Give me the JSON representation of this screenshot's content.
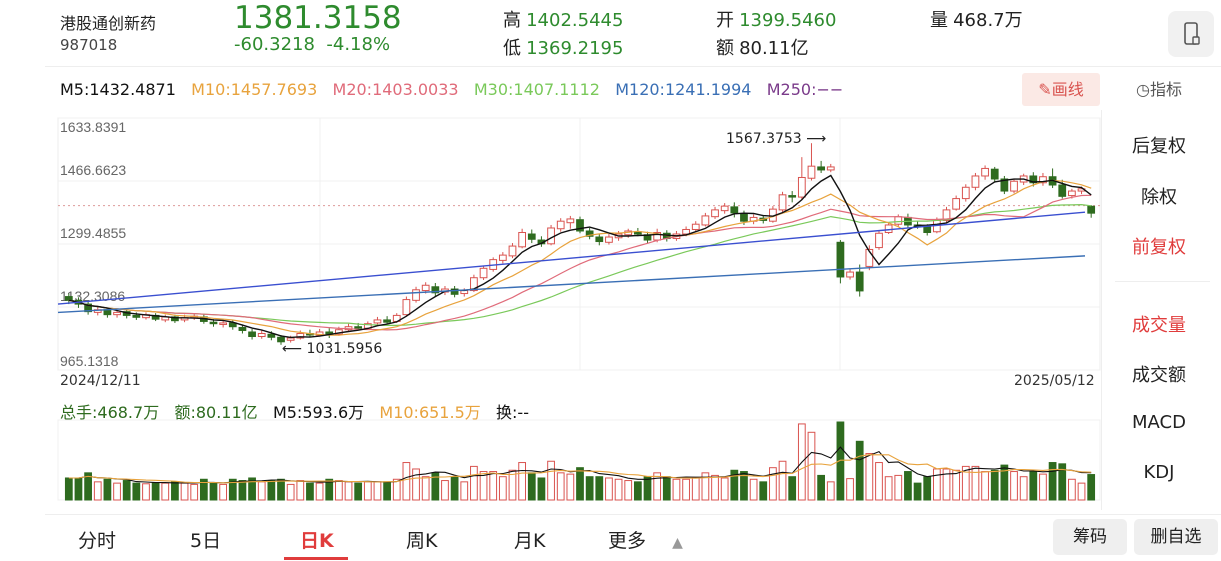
{
  "quote": {
    "name": "港股通创新药",
    "code": "987018",
    "price": "1381.3158",
    "change": "-60.3218",
    "change_pct": "-4.18%",
    "high_label": "高",
    "high_value": "1402.5445",
    "low_label": "低",
    "low_value": "1369.2195",
    "open_label": "开",
    "open_value": "1399.5460",
    "amount_label": "额",
    "amount_value": "80.11亿",
    "volume_label": "量",
    "volume_value": "468.7万"
  },
  "ma": {
    "m5": "M5:1432.4871",
    "m10": "M10:1457.7693",
    "m20": "M20:1403.0033",
    "m30": "M30:1407.1112",
    "m120": "M120:1241.1994",
    "m250": "M250:−−"
  },
  "draw_button": "画线",
  "indicator_label": "指标",
  "chart": {
    "y_ticks": [
      "1633.8391",
      "1466.6623",
      "1299.4855",
      "1132.3086",
      "965.1318"
    ],
    "date_start": "2024/12/11",
    "date_end": "2025/05/12",
    "high_annotation": "1567.3753",
    "low_annotation": "1031.5956"
  },
  "volume_row": {
    "total": "总手:468.7万",
    "amount": "额:80.11亿",
    "m5": "M5:593.6万",
    "m10": "M10:651.5万",
    "turn": "换:--"
  },
  "right_menu": [
    "后复权",
    "除权",
    "前复权",
    "成交量",
    "成交额",
    "MACD",
    "KDJ"
  ],
  "tabs": [
    "分时",
    "5日",
    "日K",
    "周K",
    "月K",
    "更多"
  ],
  "bottom_buttons": [
    "筹码",
    "删自选"
  ],
  "colors": {
    "up": "#d9534f",
    "down": "#2e6b1f",
    "green_text": "#2e8b2e",
    "accent": "#e03c3c",
    "m5": "#111111",
    "m10": "#e8a33d",
    "m20": "#e06b7a",
    "m30": "#7ac95a",
    "m120": "#3a6fb5",
    "m250": "#7a3a8a"
  },
  "chart_data": {
    "type": "candlestick",
    "x_start": "2024/12/11",
    "x_end": "2025/05/12",
    "ylim": [
      965.1318,
      1633.8391
    ],
    "candles": [
      [
        1160,
        1150,
        1168,
        1140
      ],
      [
        1150,
        1140,
        1158,
        1130
      ],
      [
        1140,
        1120,
        1148,
        1112
      ],
      [
        1118,
        1125,
        1132,
        1110
      ],
      [
        1125,
        1112,
        1130,
        1104
      ],
      [
        1112,
        1118,
        1124,
        1104
      ],
      [
        1120,
        1110,
        1126,
        1102
      ],
      [
        1110,
        1105,
        1118,
        1098
      ],
      [
        1104,
        1112,
        1118,
        1099
      ],
      [
        1110,
        1100,
        1116,
        1095
      ],
      [
        1098,
        1106,
        1112,
        1092
      ],
      [
        1106,
        1096,
        1112,
        1090
      ],
      [
        1098,
        1104,
        1112,
        1092
      ],
      [
        1104,
        1108,
        1116,
        1098
      ],
      [
        1106,
        1094,
        1114,
        1088
      ],
      [
        1092,
        1088,
        1100,
        1080
      ],
      [
        1086,
        1090,
        1096,
        1078
      ],
      [
        1090,
        1080,
        1098,
        1072
      ],
      [
        1078,
        1070,
        1086,
        1062
      ],
      [
        1066,
        1054,
        1074,
        1046
      ],
      [
        1054,
        1062,
        1070,
        1048
      ],
      [
        1060,
        1052,
        1068,
        1044
      ],
      [
        1052,
        1040,
        1058,
        1032
      ],
      [
        1044,
        1050,
        1056,
        1038
      ],
      [
        1050,
        1062,
        1070,
        1046
      ],
      [
        1062,
        1058,
        1072,
        1052
      ],
      [
        1058,
        1066,
        1074,
        1054
      ],
      [
        1066,
        1060,
        1076,
        1050
      ],
      [
        1060,
        1072,
        1080,
        1056
      ],
      [
        1072,
        1080,
        1088,
        1066
      ],
      [
        1080,
        1076,
        1090,
        1070
      ],
      [
        1076,
        1088,
        1094,
        1072
      ],
      [
        1090,
        1098,
        1106,
        1084
      ],
      [
        1098,
        1092,
        1108,
        1086
      ],
      [
        1094,
        1110,
        1116,
        1090
      ],
      [
        1112,
        1152,
        1160,
        1108
      ],
      [
        1150,
        1178,
        1186,
        1144
      ],
      [
        1176,
        1190,
        1198,
        1168
      ],
      [
        1186,
        1170,
        1196,
        1160
      ],
      [
        1172,
        1180,
        1188,
        1164
      ],
      [
        1180,
        1166,
        1188,
        1158
      ],
      [
        1168,
        1176,
        1182,
        1160
      ],
      [
        1176,
        1210,
        1218,
        1172
      ],
      [
        1210,
        1235,
        1242,
        1204
      ],
      [
        1232,
        1258,
        1264,
        1226
      ],
      [
        1256,
        1270,
        1278,
        1248
      ],
      [
        1268,
        1294,
        1302,
        1262
      ],
      [
        1292,
        1330,
        1340,
        1288
      ],
      [
        1326,
        1312,
        1338,
        1302
      ],
      [
        1310,
        1300,
        1320,
        1292
      ],
      [
        1300,
        1342,
        1350,
        1296
      ],
      [
        1340,
        1360,
        1368,
        1332
      ],
      [
        1356,
        1366,
        1374,
        1340
      ],
      [
        1364,
        1334,
        1372,
        1328
      ],
      [
        1334,
        1320,
        1342,
        1312
      ],
      [
        1318,
        1306,
        1326,
        1296
      ],
      [
        1304,
        1318,
        1326,
        1298
      ],
      [
        1316,
        1326,
        1334,
        1308
      ],
      [
        1324,
        1334,
        1340,
        1316
      ],
      [
        1332,
        1326,
        1342,
        1320
      ],
      [
        1324,
        1310,
        1332,
        1302
      ],
      [
        1310,
        1330,
        1340,
        1304
      ],
      [
        1328,
        1314,
        1336,
        1306
      ],
      [
        1314,
        1326,
        1334,
        1308
      ],
      [
        1326,
        1338,
        1346,
        1320
      ],
      [
        1338,
        1352,
        1360,
        1332
      ],
      [
        1350,
        1374,
        1382,
        1346
      ],
      [
        1372,
        1390,
        1398,
        1366
      ],
      [
        1388,
        1400,
        1408,
        1380
      ],
      [
        1398,
        1382,
        1410,
        1370
      ],
      [
        1380,
        1360,
        1388,
        1350
      ],
      [
        1360,
        1370,
        1378,
        1352
      ],
      [
        1368,
        1362,
        1376,
        1354
      ],
      [
        1360,
        1392,
        1400,
        1356
      ],
      [
        1390,
        1430,
        1438,
        1384
      ],
      [
        1428,
        1424,
        1440,
        1410
      ],
      [
        1424,
        1476,
        1530,
        1418
      ],
      [
        1474,
        1506,
        1567,
        1468
      ],
      [
        1504,
        1496,
        1520,
        1488
      ],
      [
        1496,
        1504,
        1512,
        1490
      ],
      [
        1304,
        1212,
        1310,
        1195
      ],
      [
        1212,
        1225,
        1232,
        1205
      ],
      [
        1225,
        1175,
        1245,
        1160
      ],
      [
        1240,
        1285,
        1296,
        1230
      ],
      [
        1290,
        1328,
        1336,
        1284
      ],
      [
        1330,
        1350,
        1356,
        1326
      ],
      [
        1352,
        1372,
        1378,
        1346
      ],
      [
        1370,
        1350,
        1380,
        1342
      ],
      [
        1350,
        1345,
        1360,
        1340
      ],
      [
        1345,
        1330,
        1352,
        1322
      ],
      [
        1332,
        1362,
        1370,
        1328
      ],
      [
        1362,
        1390,
        1398,
        1356
      ],
      [
        1392,
        1420,
        1428,
        1388
      ],
      [
        1420,
        1450,
        1458,
        1412
      ],
      [
        1450,
        1480,
        1488,
        1442
      ],
      [
        1480,
        1500,
        1508,
        1470
      ],
      [
        1498,
        1472,
        1504,
        1464
      ],
      [
        1472,
        1440,
        1480,
        1432
      ],
      [
        1440,
        1466,
        1472,
        1434
      ],
      [
        1464,
        1480,
        1486,
        1456
      ],
      [
        1480,
        1462,
        1490,
        1452
      ],
      [
        1462,
        1478,
        1488,
        1454
      ],
      [
        1478,
        1456,
        1500,
        1448
      ],
      [
        1456,
        1426,
        1470,
        1420
      ],
      [
        1428,
        1440,
        1446,
        1420
      ],
      [
        1440,
        1446,
        1452,
        1432
      ],
      [
        1399.546,
        1381.3158,
        1402.5445,
        1369.2195
      ]
    ],
    "lines": [
      {
        "name": "M120",
        "points": [
          [
            0,
            1118
          ],
          [
            1,
            1268
          ]
        ]
      },
      {
        "name": "M250",
        "points": [
          [
            0,
            1140
          ],
          [
            1,
            1384
          ]
        ]
      }
    ]
  }
}
